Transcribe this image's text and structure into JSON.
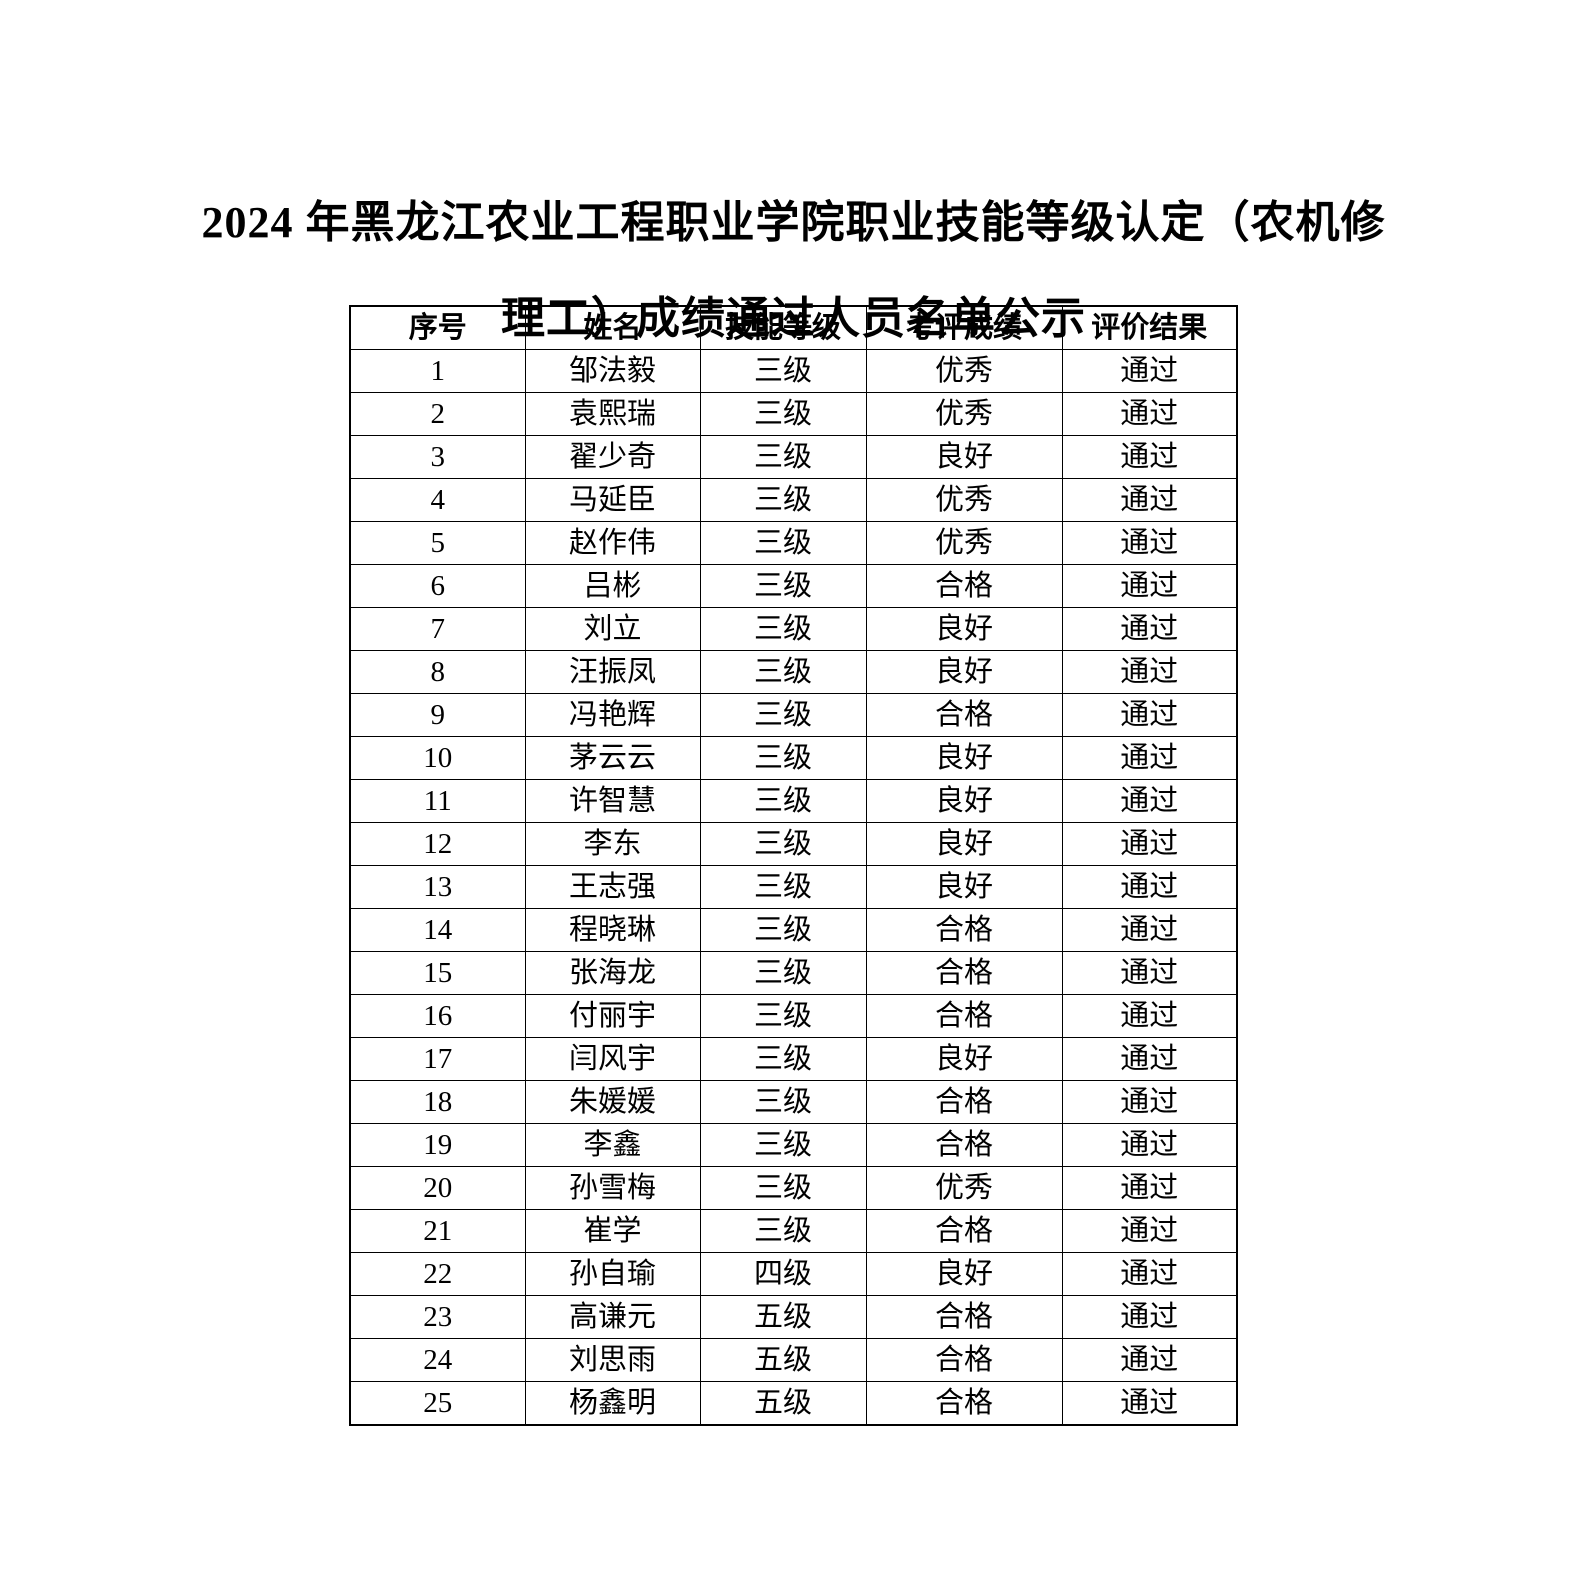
{
  "title": {
    "line1": "2024 年黑龙江农业工程职业学院职业技能等级认定（农机修",
    "line2": "理工）成绩通过人员名单公示"
  },
  "colors": {
    "page_background": "#ffffff",
    "text": "#000000",
    "table_border": "#000000"
  },
  "table": {
    "columns": [
      "序号",
      "姓名",
      "技能等级",
      "考评成绩",
      "评价结果"
    ],
    "rows": [
      {
        "no": "1",
        "name": "邹法毅",
        "level": "三级",
        "score": "优秀",
        "result": "通过"
      },
      {
        "no": "2",
        "name": "袁熙瑞",
        "level": "三级",
        "score": "优秀",
        "result": "通过"
      },
      {
        "no": "3",
        "name": "翟少奇",
        "level": "三级",
        "score": "良好",
        "result": "通过"
      },
      {
        "no": "4",
        "name": "马延臣",
        "level": "三级",
        "score": "优秀",
        "result": "通过"
      },
      {
        "no": "5",
        "name": "赵作伟",
        "level": "三级",
        "score": "优秀",
        "result": "通过"
      },
      {
        "no": "6",
        "name": "吕彬",
        "level": "三级",
        "score": "合格",
        "result": "通过"
      },
      {
        "no": "7",
        "name": "刘立",
        "level": "三级",
        "score": "良好",
        "result": "通过"
      },
      {
        "no": "8",
        "name": "汪振凤",
        "level": "三级",
        "score": "良好",
        "result": "通过"
      },
      {
        "no": "9",
        "name": "冯艳辉",
        "level": "三级",
        "score": "合格",
        "result": "通过"
      },
      {
        "no": "10",
        "name": "茅云云",
        "level": "三级",
        "score": "良好",
        "result": "通过"
      },
      {
        "no": "11",
        "name": "许智慧",
        "level": "三级",
        "score": "良好",
        "result": "通过"
      },
      {
        "no": "12",
        "name": "李东",
        "level": "三级",
        "score": "良好",
        "result": "通过"
      },
      {
        "no": "13",
        "name": "王志强",
        "level": "三级",
        "score": "良好",
        "result": "通过"
      },
      {
        "no": "14",
        "name": "程晓琳",
        "level": "三级",
        "score": "合格",
        "result": "通过"
      },
      {
        "no": "15",
        "name": "张海龙",
        "level": "三级",
        "score": "合格",
        "result": "通过"
      },
      {
        "no": "16",
        "name": "付丽宇",
        "level": "三级",
        "score": "合格",
        "result": "通过"
      },
      {
        "no": "17",
        "name": "闫风宇",
        "level": "三级",
        "score": "良好",
        "result": "通过"
      },
      {
        "no": "18",
        "name": "朱媛媛",
        "level": "三级",
        "score": "合格",
        "result": "通过"
      },
      {
        "no": "19",
        "name": "李鑫",
        "level": "三级",
        "score": "合格",
        "result": "通过"
      },
      {
        "no": "20",
        "name": "孙雪梅",
        "level": "三级",
        "score": "优秀",
        "result": "通过"
      },
      {
        "no": "21",
        "name": "崔学",
        "level": "三级",
        "score": "合格",
        "result": "通过"
      },
      {
        "no": "22",
        "name": "孙自瑜",
        "level": "四级",
        "score": "良好",
        "result": "通过"
      },
      {
        "no": "23",
        "name": "高谦元",
        "level": "五级",
        "score": "合格",
        "result": "通过"
      },
      {
        "no": "24",
        "name": "刘思雨",
        "level": "五级",
        "score": "合格",
        "result": "通过"
      },
      {
        "no": "25",
        "name": "杨鑫明",
        "level": "五级",
        "score": "合格",
        "result": "通过"
      }
    ]
  }
}
